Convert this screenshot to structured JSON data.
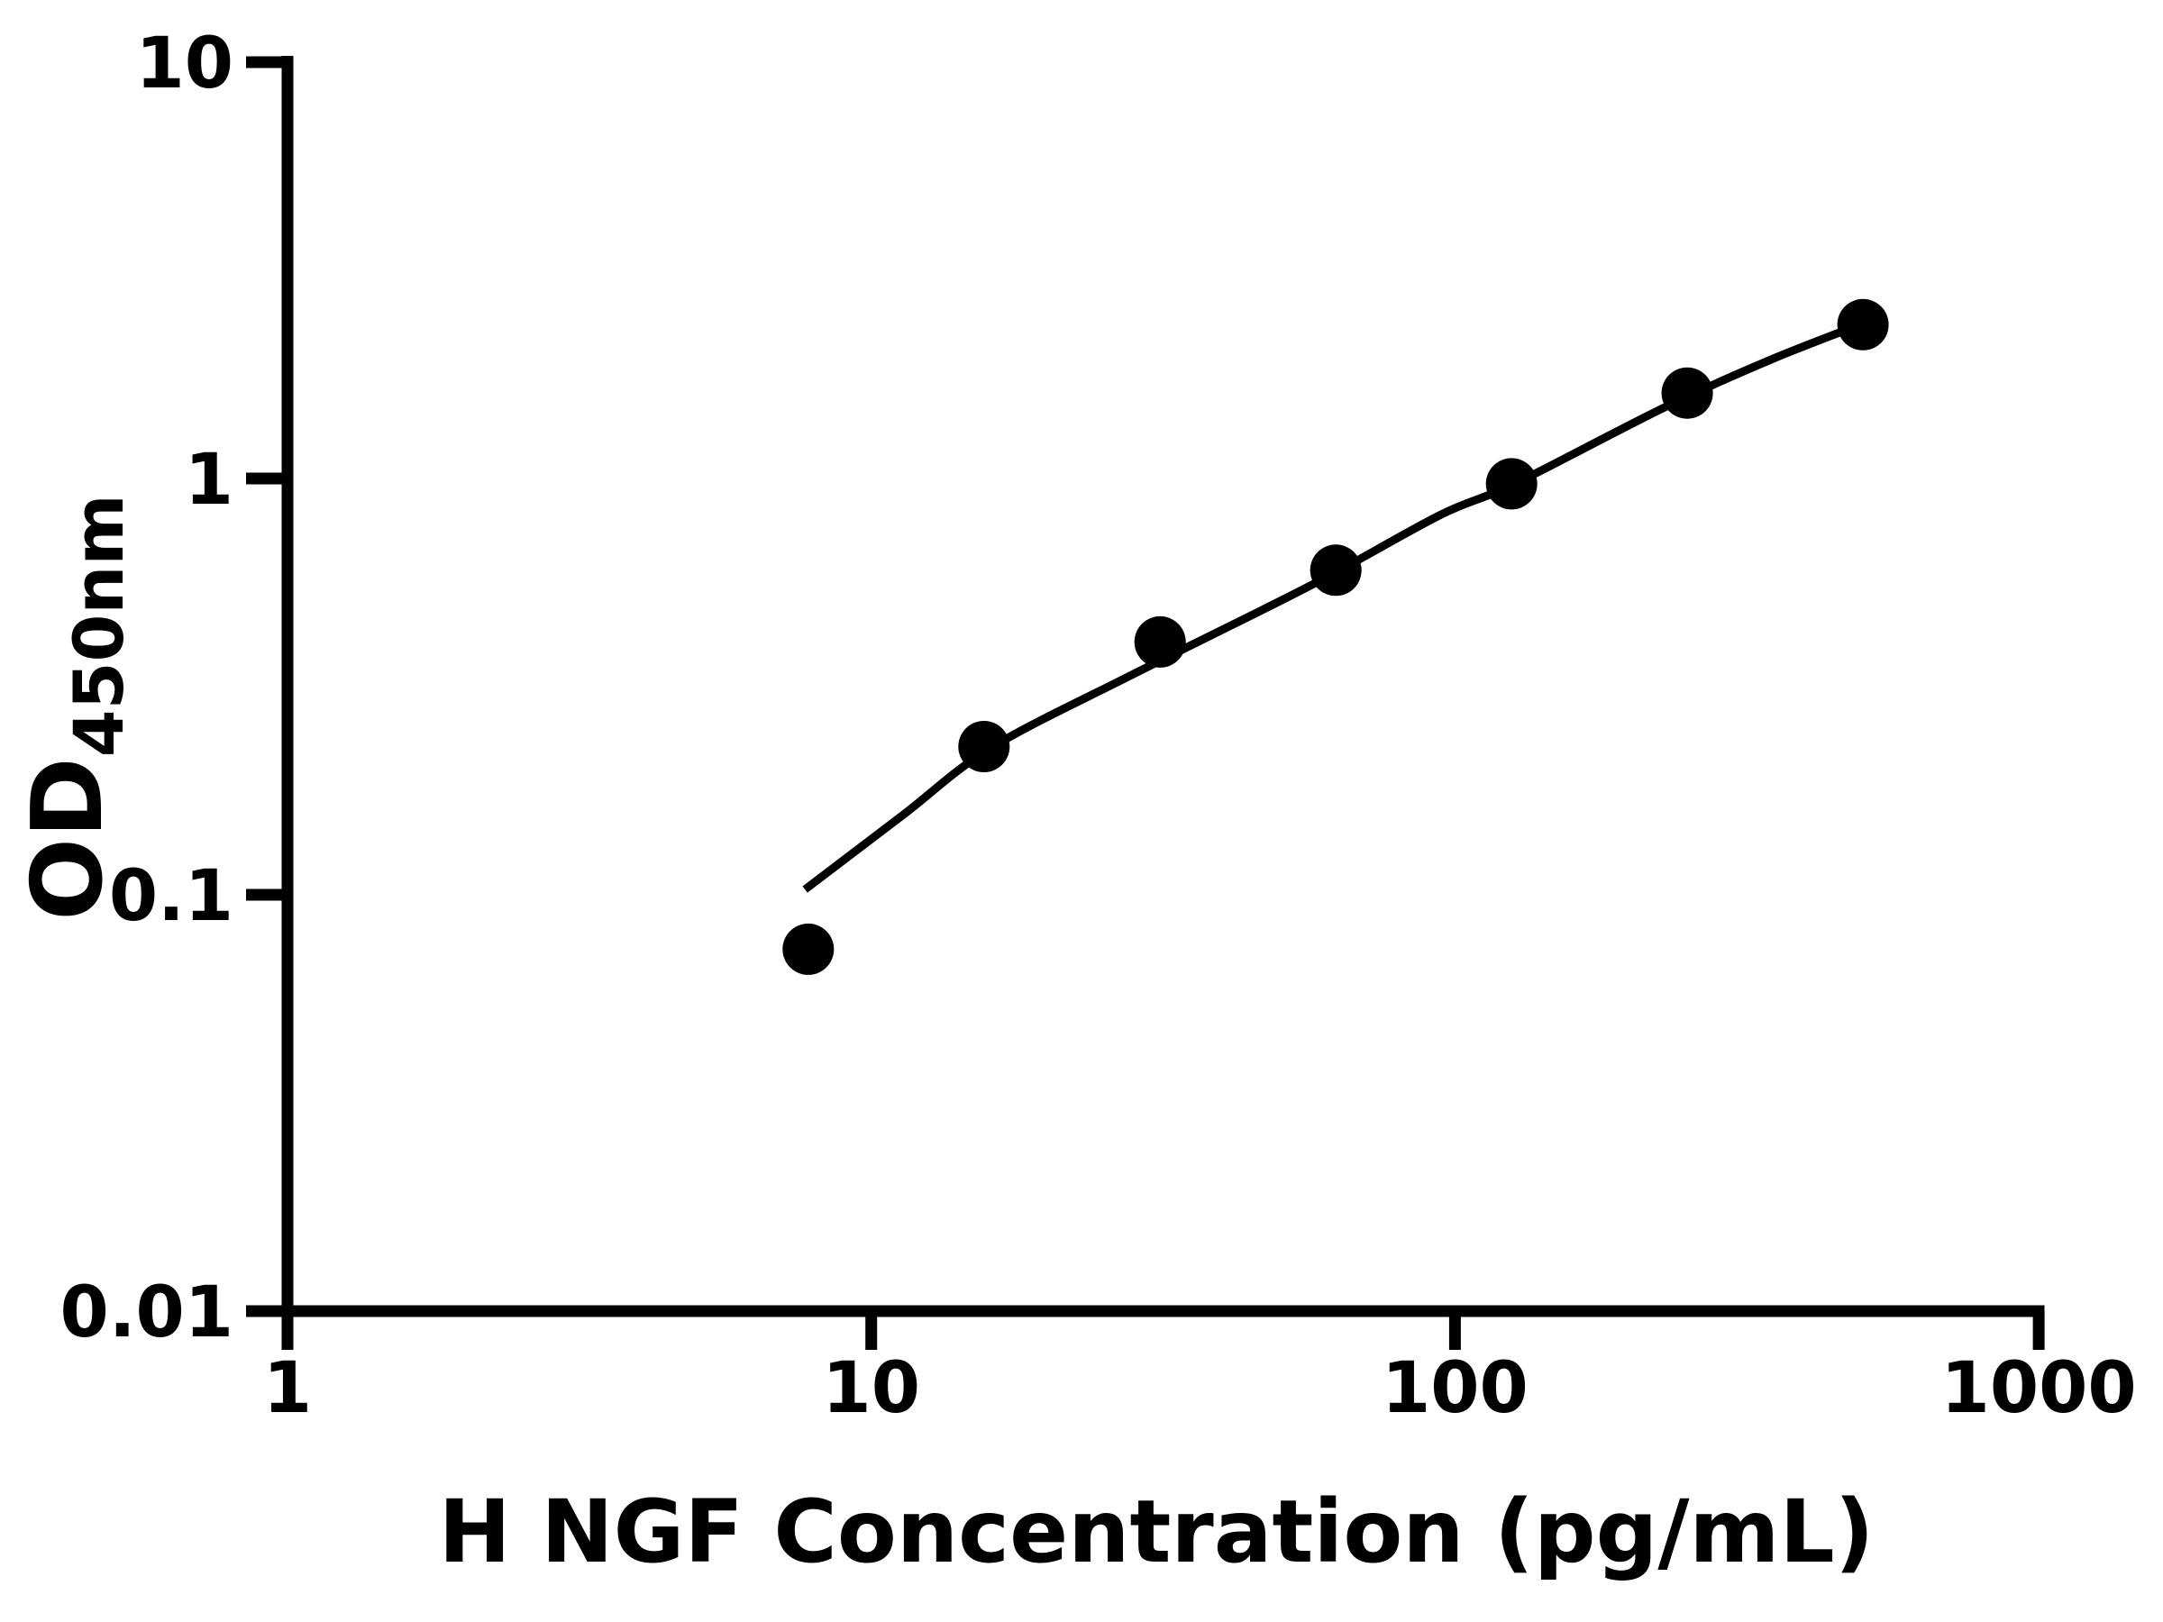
{
  "chart_data": {
    "type": "scatter",
    "title": "",
    "xlabel": "H NGF Concentration (pg/mL)",
    "ylabel": "OD",
    "ylabel_subscript": "450nm",
    "x_scale": "log",
    "y_scale": "log",
    "xlim": [
      1,
      1000
    ],
    "ylim": [
      0.01,
      10
    ],
    "x_ticks": [
      "1",
      "10",
      "100",
      "1000"
    ],
    "y_ticks": [
      "10",
      "1",
      "0.1",
      "0.01"
    ],
    "grid": "off",
    "legend": "none",
    "marker_color": "#000000",
    "line_color": "#000000",
    "axis_color": "#000000",
    "background_color": "#ffffff",
    "series": [
      {
        "name": "standards",
        "kind": "points",
        "x": [
          7.8,
          15.6,
          31.25,
          62.5,
          125,
          250,
          500
        ],
        "y": [
          0.074,
          0.227,
          0.405,
          0.602,
          0.971,
          1.604,
          2.341
        ]
      },
      {
        "name": "fit-curve",
        "kind": "line",
        "x": [
          7.7,
          11.3,
          16.0,
          27.3,
          46.6,
          62.2,
          94.8,
          124.6,
          193,
          248,
          353,
          494
        ],
        "y": [
          0.103,
          0.155,
          0.225,
          0.332,
          0.482,
          0.593,
          0.82,
          0.961,
          1.315,
          1.565,
          1.947,
          2.341
        ]
      }
    ]
  }
}
